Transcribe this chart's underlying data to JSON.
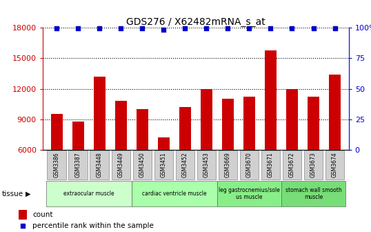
{
  "title": "GDS276 / X62482mRNA_s_at",
  "categories": [
    "GSM3386",
    "GSM3387",
    "GSM3448",
    "GSM3449",
    "GSM3450",
    "GSM3451",
    "GSM3452",
    "GSM3453",
    "GSM3669",
    "GSM3670",
    "GSM3671",
    "GSM3672",
    "GSM3673",
    "GSM3674"
  ],
  "counts": [
    9500,
    8800,
    13200,
    10800,
    10000,
    7200,
    10200,
    12000,
    11000,
    11200,
    15800,
    12000,
    11200,
    13400
  ],
  "percentile_values": [
    99.5,
    99.5,
    99.5,
    99.5,
    99.5,
    98.5,
    99.5,
    99.5,
    99.5,
    99.5,
    99.5,
    99.5,
    99.5,
    99.5
  ],
  "bar_color": "#cc0000",
  "dot_color": "#0000cc",
  "ylim_left": [
    6000,
    18000
  ],
  "ylim_right": [
    0,
    100
  ],
  "yticks_left": [
    6000,
    9000,
    12000,
    15000,
    18000
  ],
  "yticks_right": [
    0,
    25,
    50,
    75,
    100
  ],
  "tissue_groups": [
    {
      "label": "extraocular muscle",
      "start": 0,
      "end": 3,
      "color": "#ccffcc"
    },
    {
      "label": "cardiac ventricle muscle",
      "start": 4,
      "end": 7,
      "color": "#aaffaa"
    },
    {
      "label": "leg gastrocnemius/sole\nus muscle",
      "start": 8,
      "end": 10,
      "color": "#88ee88"
    },
    {
      "label": "stomach wall smooth\nmuscle",
      "start": 11,
      "end": 13,
      "color": "#77dd77"
    }
  ],
  "tissue_label": "tissue",
  "legend_count_label": "count",
  "legend_percentile_label": "percentile rank within the sample",
  "bg_color": "#ffffff",
  "title_fontsize": 10,
  "tick_fontsize": 8
}
